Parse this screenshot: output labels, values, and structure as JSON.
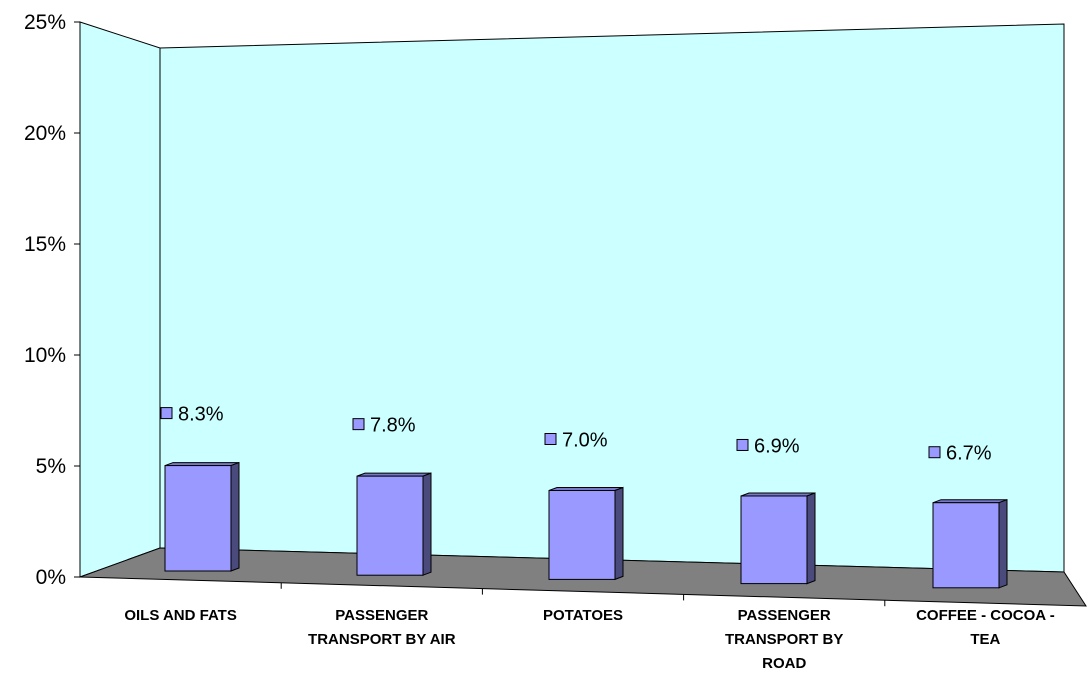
{
  "chart_data": {
    "type": "bar",
    "style": "3d-column",
    "categories": [
      [
        "OILS AND FATS"
      ],
      [
        "PASSENGER",
        "TRANSPORT BY AIR"
      ],
      [
        "POTATOES"
      ],
      [
        "PASSENGER",
        "TRANSPORT BY",
        "ROAD"
      ],
      [
        "COFFEE - COCOA -",
        "TEA"
      ]
    ],
    "values": [
      8.3,
      7.8,
      7.0,
      6.9,
      6.7
    ],
    "data_labels": [
      "8.3%",
      "7.8%",
      "7.0%",
      "6.9%",
      "6.7%"
    ],
    "y_ticks": [
      "0%",
      "5%",
      "10%",
      "15%",
      "20%",
      "25%"
    ],
    "ylim": [
      0,
      25
    ],
    "grid": false,
    "title": "",
    "xlabel": "",
    "ylabel": "",
    "colors": {
      "bar_front": "#9999ff",
      "bar_side": "#4a4a7d",
      "bar_top": "#7878c8",
      "back_wall": "#ccffff",
      "floor": "#808080",
      "label_marker": "#9999ff"
    }
  }
}
